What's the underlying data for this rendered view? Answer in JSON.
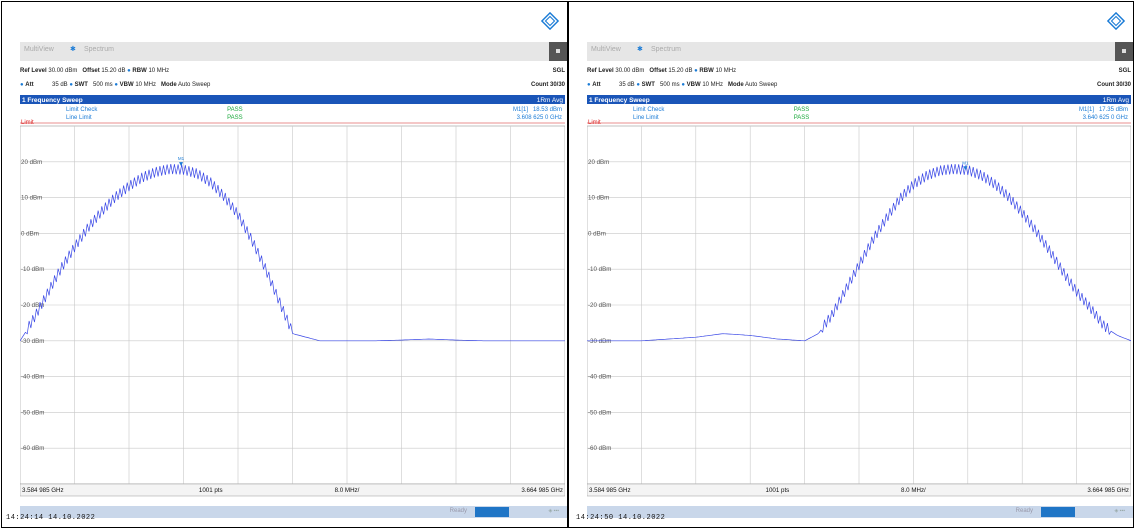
{
  "colors": {
    "title_bar": "#1a55b8",
    "trace": "#3a48e6",
    "grid": "#c8c8c8",
    "limit": "#e26a6a",
    "pass": "#19a83a",
    "marker": "#1a7bd6"
  },
  "panels": [
    {
      "id": "left",
      "tabs": [
        "MultiView",
        "Spectrum"
      ],
      "ref_level_label": "Ref Level",
      "ref_level": "30.00 dBm",
      "offset_label": "Offset",
      "offset": "15.20 dB",
      "rbw_label": "RBW",
      "rbw": "10 MHz",
      "att_label": "Att",
      "att": "35 dB",
      "swt_label": "SWT",
      "swt": "500 ms",
      "vbw_label": "VBW",
      "vbw": "10 MHz",
      "mode_label": "Mode",
      "mode": "Auto Sweep",
      "sgl": "SGL",
      "count": "Count 30/30",
      "window_title": "1 Frequency Sweep",
      "trace_mode": "1Rm Avg",
      "limit_check_label": "Limit Check",
      "limit_check": "PASS",
      "line_limit_label": "Line Limit",
      "line_limit": "PASS",
      "marker_label": "M1[1]",
      "marker_level": "18.53 dBm",
      "marker_freq": "3.608 625 0 GHz",
      "marker_tag": "M1",
      "limit_tag": "Limit",
      "start_freq": "3.584 985 GHz",
      "points": "1001 pts",
      "span_div": "8.0 MHz/",
      "stop_freq": "3.664 985 GHz",
      "status_text": "Ready",
      "timestamp": "14:24:14  14.10.2022"
    },
    {
      "id": "right",
      "tabs": [
        "MultiView",
        "Spectrum"
      ],
      "ref_level_label": "Ref Level",
      "ref_level": "30.00 dBm",
      "offset_label": "Offset",
      "offset": "15.20 dB",
      "rbw_label": "RBW",
      "rbw": "10 MHz",
      "att_label": "Att",
      "att": "35 dB",
      "swt_label": "SWT",
      "swt": "500 ms",
      "vbw_label": "VBW",
      "vbw": "10 MHz",
      "mode_label": "Mode",
      "mode": "Auto Sweep",
      "sgl": "SGL",
      "count": "Count 30/30",
      "window_title": "1 Frequency Sweep",
      "trace_mode": "1Rm Avg",
      "limit_check_label": "Limit Check",
      "limit_check": "PASS",
      "line_limit_label": "Line Limit",
      "line_limit": "PASS",
      "marker_label": "M1[1]",
      "marker_level": "17.35 dBm",
      "marker_freq": "3.640 625 0 GHz",
      "marker_tag": "M1",
      "limit_tag": "Limit",
      "start_freq": "3.584 985 GHz",
      "points": "1001 pts",
      "span_div": "8.0 MHz/",
      "stop_freq": "3.664 985 GHz",
      "status_text": "Ready",
      "timestamp": "14:24:50  14.10.2022"
    }
  ],
  "chart_data": [
    {
      "type": "line",
      "y_tick_labels": [
        "20 dBm",
        "10 dBm",
        "0 dBm",
        "-10 dBm",
        "-20 dBm",
        "-30 dBm",
        "-40 dBm",
        "-50 dBm",
        "-60 dBm"
      ],
      "y_ticks": [
        20,
        10,
        0,
        -10,
        -20,
        -30,
        -40,
        -50,
        -60
      ],
      "ylim": [
        -70,
        30
      ],
      "xlim": [
        3.584985,
        3.664985
      ],
      "limit_line_dbm": 23,
      "grid": true,
      "series": [
        {
          "x": [
            3.585,
            3.587,
            3.589,
            3.591,
            3.593,
            3.595,
            3.597,
            3.599,
            3.601,
            3.603,
            3.605,
            3.607,
            3.609,
            3.611,
            3.613,
            3.615,
            3.617,
            3.619,
            3.621,
            3.623,
            3.625,
            3.629,
            3.633,
            3.637,
            3.641,
            3.645,
            3.649,
            3.653,
            3.657,
            3.661,
            3.665
          ],
          "values": [
            -30,
            -24,
            -17,
            -10,
            -4,
            1.5,
            6,
            10,
            13,
            15.5,
            17,
            17.8,
            17.6,
            16.5,
            14,
            10,
            5,
            -2,
            -10,
            -19,
            -28,
            -30,
            -30,
            -30,
            -29.8,
            -29.5,
            -29.8,
            -30,
            -30,
            -30,
            -30
          ]
        }
      ],
      "marker": {
        "x": 3.608625,
        "y": 18.53
      }
    },
    {
      "type": "line",
      "y_tick_labels": [
        "20 dBm",
        "10 dBm",
        "0 dBm",
        "-10 dBm",
        "-20 dBm",
        "-30 dBm",
        "-40 dBm",
        "-50 dBm",
        "-60 dBm"
      ],
      "y_ticks": [
        20,
        10,
        0,
        -10,
        -20,
        -30,
        -40,
        -50,
        -60
      ],
      "ylim": [
        -70,
        30
      ],
      "xlim": [
        3.584985,
        3.664985
      ],
      "limit_line_dbm": 23,
      "grid": true,
      "series": [
        {
          "x": [
            3.585,
            3.589,
            3.593,
            3.597,
            3.601,
            3.605,
            3.609,
            3.613,
            3.617,
            3.619,
            3.621,
            3.623,
            3.625,
            3.627,
            3.629,
            3.631,
            3.633,
            3.635,
            3.637,
            3.639,
            3.641,
            3.643,
            3.645,
            3.647,
            3.649,
            3.651,
            3.653,
            3.655,
            3.657,
            3.659,
            3.661,
            3.663,
            3.665
          ],
          "values": [
            -30,
            -30,
            -30,
            -29.5,
            -29,
            -28,
            -28.5,
            -29.5,
            -30,
            -28,
            -23,
            -16,
            -9,
            -2,
            4,
            9.5,
            13.5,
            16,
            17.4,
            17.8,
            17.5,
            16,
            13.5,
            10,
            5.5,
            0.5,
            -5,
            -11,
            -16.5,
            -21,
            -26,
            -28.5,
            -30
          ]
        }
      ],
      "marker": {
        "x": 3.640625,
        "y": 17.35
      }
    }
  ]
}
